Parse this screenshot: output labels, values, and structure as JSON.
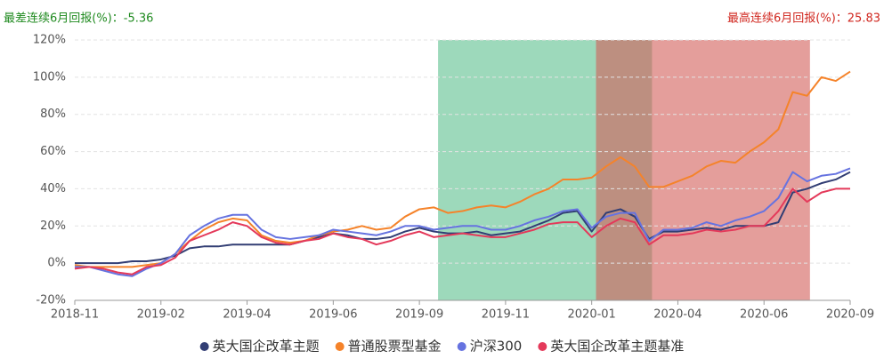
{
  "chart_data": {
    "type": "line",
    "worst_note": "最差连续6月回报(%)：-5.36",
    "best_note": "最高连续6月回报(%)：25.83",
    "categories": [
      "2018-11",
      null,
      null,
      null,
      null,
      null,
      "2019-02",
      null,
      null,
      null,
      null,
      null,
      "2019-04",
      null,
      null,
      null,
      null,
      null,
      "2019-06",
      null,
      null,
      null,
      null,
      null,
      "2019-09",
      null,
      null,
      null,
      null,
      null,
      "2019-11",
      null,
      null,
      null,
      null,
      null,
      "2020-01",
      null,
      null,
      null,
      null,
      null,
      "2020-04",
      null,
      null,
      null,
      null,
      null,
      "2020-06",
      null,
      null,
      null,
      null,
      null,
      "2020-09"
    ],
    "series": [
      {
        "name": "英大国企改革主题",
        "color": "#323e74",
        "values": [
          0,
          0,
          0,
          0,
          1,
          1,
          2,
          4,
          8,
          9,
          9,
          10,
          10,
          10,
          10,
          10,
          12,
          14,
          16,
          15,
          13,
          13,
          14,
          17,
          19,
          17,
          16,
          16,
          17,
          15,
          16,
          17,
          20,
          23,
          27,
          28,
          17,
          27,
          29,
          25,
          13,
          17,
          17,
          18,
          19,
          18,
          20,
          20,
          20,
          22,
          38,
          40,
          43,
          45,
          49
        ]
      },
      {
        "name": "普通股票型基金",
        "color": "#f5832a",
        "values": [
          -1,
          -2,
          -2,
          -2,
          -2,
          -1,
          0,
          5,
          12,
          18,
          22,
          24,
          23,
          15,
          12,
          11,
          12,
          15,
          17,
          18,
          20,
          18,
          19,
          25,
          29,
          30,
          27,
          28,
          30,
          31,
          30,
          33,
          37,
          40,
          45,
          45,
          46,
          52,
          57,
          52,
          41,
          41,
          44,
          47,
          52,
          55,
          54,
          60,
          65,
          72,
          92,
          90,
          100,
          98,
          103
        ]
      },
      {
        "name": "沪深300",
        "color": "#6673e0",
        "values": [
          -2,
          -2,
          -4,
          -6,
          -7,
          -3,
          0,
          5,
          15,
          20,
          24,
          26,
          26,
          18,
          14,
          13,
          14,
          15,
          18,
          17,
          16,
          15,
          17,
          20,
          20,
          18,
          19,
          20,
          20,
          18,
          18,
          20,
          23,
          25,
          28,
          29,
          19,
          25,
          27,
          27,
          12,
          18,
          18,
          19,
          22,
          20,
          23,
          25,
          28,
          35,
          49,
          44,
          47,
          48,
          51
        ]
      },
      {
        "name": "英大国企改革主题基准",
        "color": "#e4395a",
        "values": [
          -3,
          -2,
          -3,
          -5,
          -6,
          -2,
          -1,
          3,
          12,
          15,
          18,
          22,
          20,
          14,
          11,
          10,
          12,
          13,
          16,
          14,
          13,
          10,
          12,
          15,
          17,
          14,
          15,
          16,
          15,
          14,
          14,
          16,
          18,
          21,
          22,
          22,
          14,
          20,
          24,
          22,
          10,
          15,
          15,
          16,
          18,
          17,
          18,
          20,
          20,
          28,
          40,
          33,
          38,
          40,
          40
        ]
      }
    ],
    "bands": [
      {
        "start": 25.3,
        "end": 40.2,
        "color": "#5cbf8e"
      },
      {
        "start": 36.3,
        "end": 51.2,
        "color": "#d25d58"
      }
    ],
    "ylim": [
      -20,
      120
    ],
    "yticks": [
      {
        "value": -20,
        "label": "-20%"
      },
      {
        "value": 0,
        "label": "0%"
      },
      {
        "value": 20,
        "label": "20%"
      },
      {
        "value": 40,
        "label": "40%"
      },
      {
        "value": 60,
        "label": "60%"
      },
      {
        "value": 80,
        "label": "80%"
      },
      {
        "value": 100,
        "label": "100%"
      },
      {
        "value": 120,
        "label": "120%"
      }
    ],
    "grid": true
  }
}
